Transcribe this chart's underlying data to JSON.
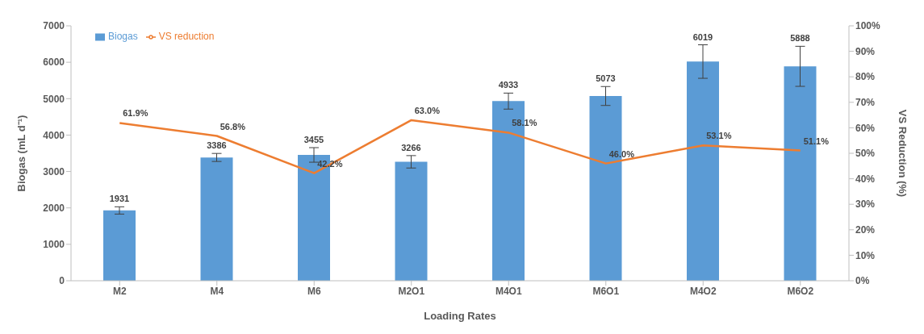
{
  "chart_data": {
    "type": "bar",
    "xlabel": "Loading Rates",
    "ylabel": "Biogas (mL d⁻¹)",
    "y2label": "VS Reduction (%)",
    "categories": [
      "M2",
      "M4",
      "M6",
      "M2O1",
      "M4O1",
      "M6O1",
      "M4O2",
      "M6O2"
    ],
    "series": [
      {
        "name": "Biogas",
        "color": "#5b9bd5",
        "values": [
          1931,
          3386,
          3455,
          3266,
          4933,
          5073,
          6019,
          5888
        ],
        "errors": [
          100,
          110,
          200,
          170,
          220,
          260,
          460,
          550
        ],
        "value_labels": [
          "1931",
          "3386",
          "3455",
          "3266",
          "4933",
          "5073",
          "6019",
          "5888"
        ]
      },
      {
        "name": "VS reduction",
        "type": "line",
        "axis": "y2",
        "color": "#ed7d31",
        "values": [
          61.9,
          56.8,
          42.2,
          63.0,
          58.1,
          46.0,
          53.1,
          51.1
        ],
        "value_labels": [
          "61.9%",
          "56.8%",
          "42.2%",
          "63.0%",
          "58.1%",
          "46.0%",
          "53.1%",
          "51.1%"
        ]
      }
    ],
    "ylim": [
      0,
      7000
    ],
    "yticks": [
      0,
      1000,
      2000,
      3000,
      4000,
      5000,
      6000,
      7000
    ],
    "y2lim": [
      0,
      100
    ],
    "y2ticks": [
      {
        "value": 0,
        "label": "0%"
      },
      {
        "value": 10,
        "label": "10%"
      },
      {
        "value": 20,
        "label": "20%"
      },
      {
        "value": 30,
        "label": "30%"
      },
      {
        "value": 40,
        "label": "40%"
      },
      {
        "value": 50,
        "label": "50%"
      },
      {
        "value": 60,
        "label": "60%"
      },
      {
        "value": 70,
        "label": "70%"
      },
      {
        "value": 80,
        "label": "80%"
      },
      {
        "value": 90,
        "label": "90%"
      },
      {
        "value": 100,
        "label": "100%"
      }
    ],
    "grid": false,
    "legend": "top left",
    "marker": "none",
    "line_style": "solid"
  }
}
